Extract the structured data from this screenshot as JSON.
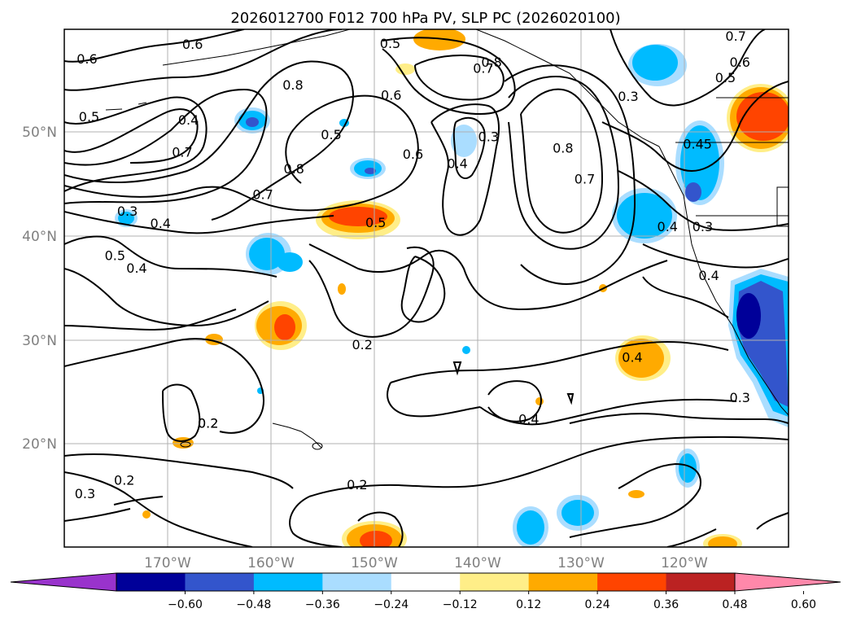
{
  "title": "2026012700 F012 700 hPa PV, SLP PC (2026020100)",
  "map": {
    "lat_labels": [
      "50°N",
      "40°N",
      "30°N",
      "20°N"
    ],
    "lon_labels": [
      "170°W",
      "160°W",
      "150°W",
      "140°W",
      "130°W",
      "120°W"
    ],
    "lat_values": [
      50,
      40,
      30,
      20
    ],
    "lon_values": [
      -170,
      -160,
      -150,
      -140,
      -130,
      -120
    ],
    "extent": {
      "lon_min": -180,
      "lon_max": -110,
      "lat_min": 10,
      "lat_max": 60
    }
  },
  "contour_labels": [
    {
      "text": "0.6",
      "lon": -177.8,
      "lat": 56.7
    },
    {
      "text": "0.6",
      "lon": -167.6,
      "lat": 58.1
    },
    {
      "text": "0.5",
      "lon": -177.6,
      "lat": 51.1
    },
    {
      "text": "0.4",
      "lon": -168.0,
      "lat": 50.8
    },
    {
      "text": "0.7",
      "lon": -168.6,
      "lat": 47.7
    },
    {
      "text": "0.8",
      "lon": -157.9,
      "lat": 54.2
    },
    {
      "text": "0.5",
      "lon": -148.5,
      "lat": 58.2
    },
    {
      "text": "0.6",
      "lon": -148.4,
      "lat": 53.2
    },
    {
      "text": "0.5",
      "lon": -154.2,
      "lat": 49.4
    },
    {
      "text": "0.6",
      "lon": -146.3,
      "lat": 47.5
    },
    {
      "text": "0.8",
      "lon": -157.8,
      "lat": 46.1
    },
    {
      "text": "0.7",
      "lon": -160.8,
      "lat": 43.6
    },
    {
      "text": "0.5",
      "lon": -149.9,
      "lat": 40.9
    },
    {
      "text": "0.3",
      "lon": -173.9,
      "lat": 42.0
    },
    {
      "text": "0.4",
      "lon": -170.7,
      "lat": 40.8
    },
    {
      "text": "0.5",
      "lon": -175.1,
      "lat": 37.7
    },
    {
      "text": "0.4",
      "lon": -173.0,
      "lat": 36.5
    },
    {
      "text": "0.7",
      "lon": -139.5,
      "lat": 55.8
    },
    {
      "text": "0.8",
      "lon": -138.7,
      "lat": 56.4
    },
    {
      "text": "0.3",
      "lon": -139.0,
      "lat": 49.2
    },
    {
      "text": "0.4",
      "lon": -142.0,
      "lat": 46.6
    },
    {
      "text": "0.8",
      "lon": -131.8,
      "lat": 48.1
    },
    {
      "text": "0.7",
      "lon": -129.7,
      "lat": 45.1
    },
    {
      "text": "0.3",
      "lon": -125.5,
      "lat": 53.1
    },
    {
      "text": "0.7",
      "lon": -115.1,
      "lat": 58.9
    },
    {
      "text": "0.6",
      "lon": -114.7,
      "lat": 56.4
    },
    {
      "text": "0.5",
      "lon": -116.1,
      "lat": 54.9
    },
    {
      "text": "0.45",
      "lon": -118.8,
      "lat": 48.5
    },
    {
      "text": "0.4",
      "lon": -121.7,
      "lat": 40.5
    },
    {
      "text": "0.3",
      "lon": -118.3,
      "lat": 40.5
    },
    {
      "text": "0.4",
      "lon": -117.7,
      "lat": 35.8
    },
    {
      "text": "0.2",
      "lon": -151.2,
      "lat": 29.1
    },
    {
      "text": "0.4",
      "lon": -125.1,
      "lat": 27.9
    },
    {
      "text": "0.3",
      "lon": -114.7,
      "lat": 24.0
    },
    {
      "text": "0.4",
      "lon": -135.1,
      "lat": 21.9
    },
    {
      "text": "0.2",
      "lon": -166.1,
      "lat": 21.5
    },
    {
      "text": "0.2",
      "lon": -166.1,
      "lat": 21.5
    },
    {
      "text": "0.2",
      "lon": -151.7,
      "lat": 15.6
    },
    {
      "text": "0.2",
      "lon": -174.2,
      "lat": 16.0
    },
    {
      "text": "0.3",
      "lon": -178.0,
      "lat": 14.7
    }
  ],
  "colorbar": {
    "ticks": [
      "−0.60",
      "−0.48",
      "−0.36",
      "−0.24",
      "−0.12",
      "0.12",
      "0.24",
      "0.36",
      "0.48",
      "0.60"
    ],
    "colors": [
      "#9933cc",
      "#000099",
      "#3355cc",
      "#00bbff",
      "#aaddff",
      "#ffffff",
      "#ffee88",
      "#ffaa00",
      "#ff4400",
      "#bb2222",
      "#ff88aa"
    ]
  }
}
